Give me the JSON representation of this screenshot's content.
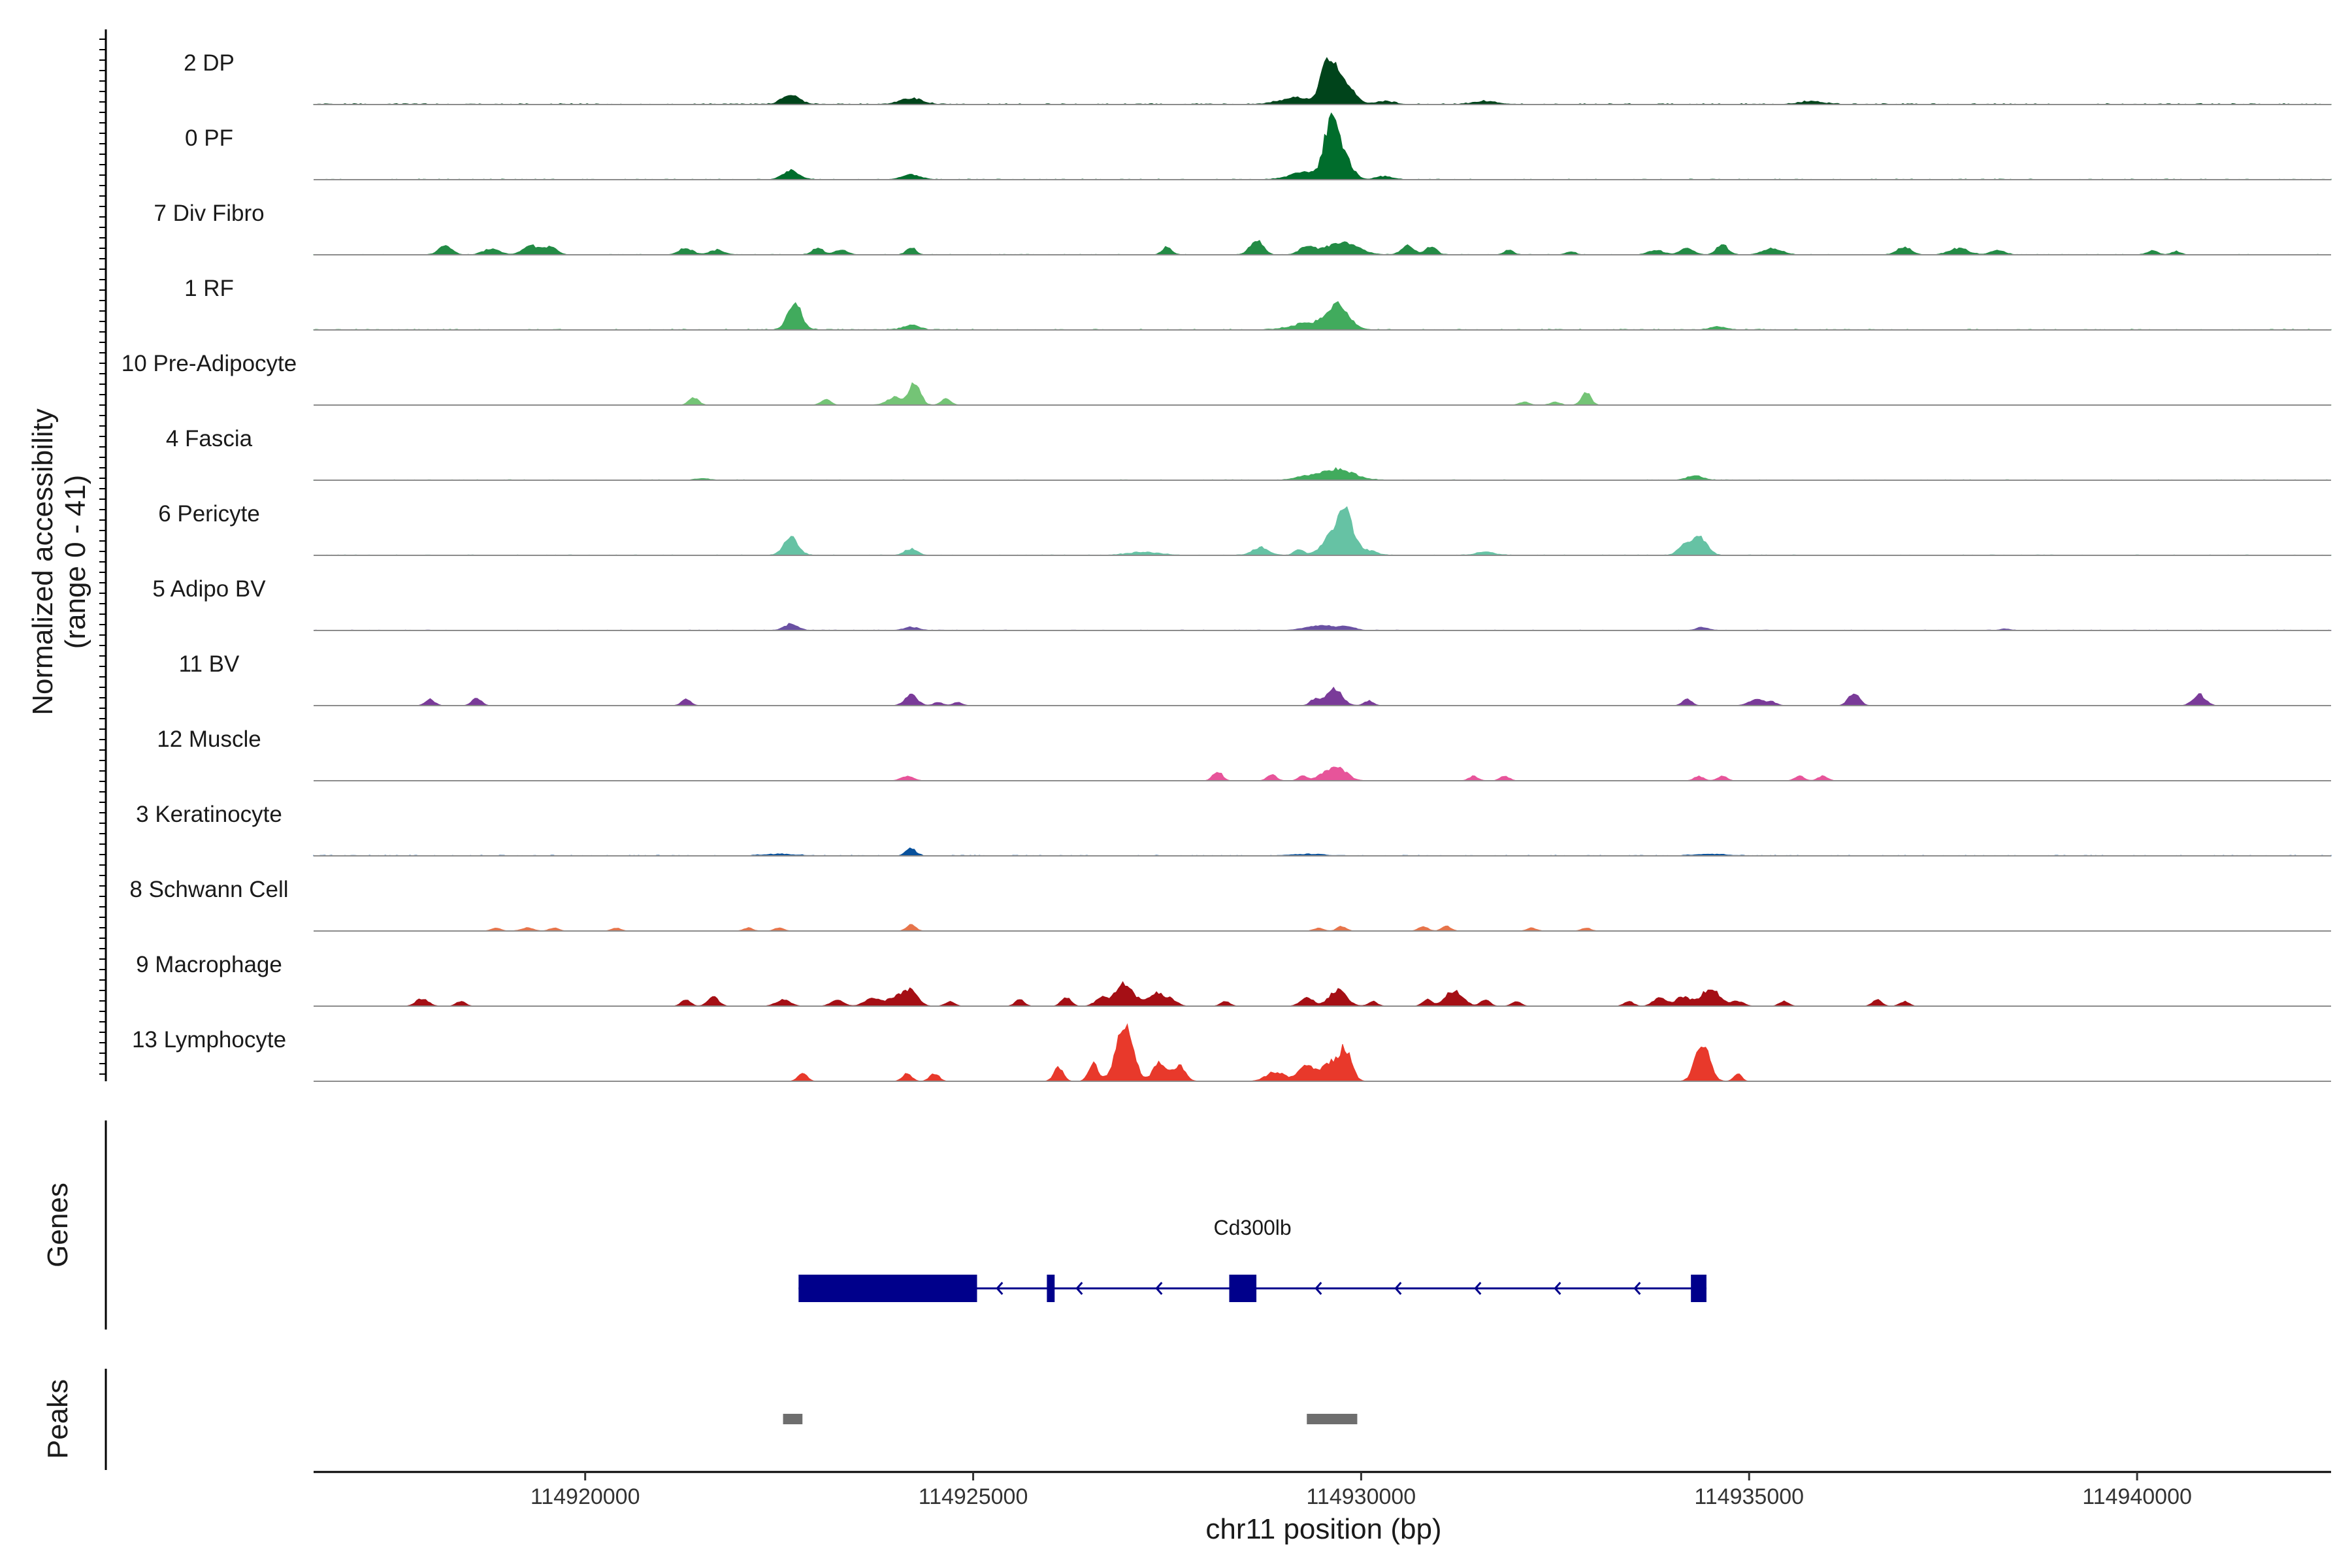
{
  "chart_data": {
    "type": "area",
    "description_kind": "genome coverage tracks",
    "ylabel": "Normalized accessibility\n(range 0 - 41)",
    "ylabel_line1": "Normalized accessibility",
    "ylabel_line2": "(range 0 - 41)",
    "ylim": [
      0,
      41
    ],
    "xlabel": "chr11 position (bp)",
    "xlim": [
      114916500,
      114942500
    ],
    "xticks": [
      114920000,
      114925000,
      114930000,
      114935000,
      114940000
    ],
    "xtick_labels": [
      "114920000",
      "114925000",
      "114930000",
      "114935000",
      "114940000"
    ],
    "tracks": [
      {
        "name": "2 DP",
        "color": "#00441b",
        "base": 0.6,
        "peaks": [
          [
            114922650,
            110,
            6
          ],
          [
            114924200,
            140,
            4
          ],
          [
            114929580,
            90,
            28
          ],
          [
            114929780,
            120,
            14
          ],
          [
            114929150,
            200,
            4
          ],
          [
            114930300,
            120,
            2
          ],
          [
            114931600,
            150,
            2
          ],
          [
            114935800,
            150,
            2
          ]
        ]
      },
      {
        "name": "0 PF",
        "color": "#006d2c",
        "base": 0.4,
        "peaks": [
          [
            114922650,
            100,
            6
          ],
          [
            114924200,
            120,
            3
          ],
          [
            114929600,
            80,
            30
          ],
          [
            114929750,
            110,
            18
          ],
          [
            114929300,
            200,
            5
          ],
          [
            114930300,
            100,
            2
          ]
        ]
      },
      {
        "name": "7 Div Fibro",
        "color": "#238b45",
        "base": 0.3,
        "peaks": [
          [
            114918200,
            80,
            6
          ],
          [
            114918800,
            100,
            4
          ],
          [
            114919300,
            100,
            6
          ],
          [
            114919550,
            80,
            5
          ],
          [
            114921300,
            90,
            4
          ],
          [
            114921700,
            90,
            3
          ],
          [
            114923000,
            70,
            4
          ],
          [
            114923300,
            80,
            3
          ],
          [
            114924200,
            60,
            5
          ],
          [
            114927500,
            60,
            5
          ],
          [
            114928650,
            80,
            10
          ],
          [
            114929300,
            90,
            5
          ],
          [
            114929750,
            200,
            8
          ],
          [
            114930600,
            80,
            6
          ],
          [
            114930900,
            70,
            5
          ],
          [
            114931900,
            60,
            3
          ],
          [
            114932700,
            60,
            2
          ],
          [
            114933800,
            90,
            3
          ],
          [
            114934200,
            90,
            4
          ],
          [
            114934650,
            70,
            7
          ],
          [
            114935300,
            120,
            4
          ],
          [
            114937000,
            90,
            5
          ],
          [
            114937700,
            120,
            4
          ],
          [
            114938200,
            90,
            3
          ],
          [
            114940200,
            60,
            3
          ],
          [
            114940500,
            60,
            2
          ]
        ]
      },
      {
        "name": "1 RF",
        "color": "#41ab5d",
        "base": 0.5,
        "peaks": [
          [
            114922700,
            90,
            16
          ],
          [
            114924200,
            100,
            3
          ],
          [
            114929700,
            140,
            16
          ],
          [
            114929300,
            200,
            4
          ],
          [
            114934600,
            100,
            2
          ]
        ]
      },
      {
        "name": "10 Pre-Adipocyte",
        "color": "#74c476",
        "base": 0.2,
        "peaks": [
          [
            114921400,
            60,
            5
          ],
          [
            114923100,
            60,
            4
          ],
          [
            114924000,
            100,
            5
          ],
          [
            114924250,
            70,
            14
          ],
          [
            114924650,
            60,
            4
          ],
          [
            114932100,
            60,
            2
          ],
          [
            114932500,
            60,
            2
          ],
          [
            114932900,
            60,
            8
          ]
        ]
      },
      {
        "name": "4 Fascia",
        "color": "#41ab5d",
        "base": 0.3,
        "peaks": [
          [
            114929700,
            200,
            7
          ],
          [
            114929300,
            150,
            2
          ],
          [
            114934300,
            100,
            3
          ],
          [
            114921500,
            80,
            1
          ]
        ]
      },
      {
        "name": "6 Pericyte",
        "color": "#66c2a4",
        "base": 0.3,
        "peaks": [
          [
            114922650,
            90,
            12
          ],
          [
            114924200,
            80,
            4
          ],
          [
            114928700,
            100,
            5
          ],
          [
            114929200,
            60,
            4
          ],
          [
            114929800,
            100,
            26
          ],
          [
            114929600,
            120,
            10
          ],
          [
            114930100,
            100,
            3
          ],
          [
            114934350,
            100,
            12
          ],
          [
            114934150,
            80,
            5
          ],
          [
            114927200,
            200,
            2
          ],
          [
            114931600,
            120,
            2
          ]
        ]
      },
      {
        "name": "5 Adipo BV",
        "color": "#6a51a3",
        "base": 0.3,
        "peaks": [
          [
            114922650,
            90,
            4
          ],
          [
            114924200,
            100,
            2
          ],
          [
            114929500,
            200,
            3
          ],
          [
            114929850,
            80,
            2
          ],
          [
            114934400,
            80,
            2
          ],
          [
            114938300,
            60,
            1
          ]
        ]
      },
      {
        "name": "11 BV",
        "color": "#7a3b99",
        "base": 0,
        "peaks": [
          [
            114918000,
            60,
            4
          ],
          [
            114918600,
            60,
            5
          ],
          [
            114921300,
            60,
            4
          ],
          [
            114924200,
            80,
            7
          ],
          [
            114924550,
            60,
            2
          ],
          [
            114924800,
            60,
            2
          ],
          [
            114929650,
            100,
            11
          ],
          [
            114929400,
            60,
            4
          ],
          [
            114930100,
            60,
            3
          ],
          [
            114934200,
            60,
            4
          ],
          [
            114935100,
            100,
            4
          ],
          [
            114935300,
            60,
            2
          ],
          [
            114936350,
            70,
            8
          ],
          [
            114940800,
            80,
            7
          ]
        ]
      },
      {
        "name": "12 Muscle",
        "color": "#e7549a",
        "base": 0,
        "peaks": [
          [
            114924150,
            80,
            3
          ],
          [
            114928150,
            60,
            6
          ],
          [
            114928850,
            60,
            4
          ],
          [
            114929250,
            60,
            3
          ],
          [
            114929700,
            120,
            8
          ],
          [
            114929500,
            80,
            3
          ],
          [
            114931450,
            60,
            3
          ],
          [
            114931850,
            60,
            3
          ],
          [
            114934350,
            60,
            3
          ],
          [
            114934650,
            60,
            3
          ],
          [
            114935650,
            60,
            3
          ],
          [
            114935950,
            60,
            3
          ]
        ]
      },
      {
        "name": "3 Keratinocyte",
        "color": "#08519c",
        "base": 0.4,
        "peaks": [
          [
            114924200,
            60,
            5
          ],
          [
            114929300,
            200,
            1
          ],
          [
            114934500,
            200,
            1
          ],
          [
            114922500,
            200,
            1
          ]
        ]
      },
      {
        "name": "8 Schwann Cell",
        "color": "#e6744b",
        "base": 0,
        "peaks": [
          [
            114918850,
            60,
            2
          ],
          [
            114919250,
            80,
            2
          ],
          [
            114919600,
            60,
            2
          ],
          [
            114920400,
            60,
            2
          ],
          [
            114922100,
            60,
            2
          ],
          [
            114922500,
            60,
            2
          ],
          [
            114924200,
            60,
            4
          ],
          [
            114929450,
            60,
            2
          ],
          [
            114929750,
            60,
            3
          ],
          [
            114930800,
            60,
            3
          ],
          [
            114931100,
            60,
            3
          ],
          [
            114932200,
            60,
            2
          ],
          [
            114932900,
            60,
            2
          ]
        ]
      },
      {
        "name": "9 Macrophage",
        "color": "#a50f15",
        "base": 0,
        "peaks": [
          [
            114917900,
            80,
            5
          ],
          [
            114918400,
            60,
            3
          ],
          [
            114921300,
            60,
            4
          ],
          [
            114921650,
            70,
            6
          ],
          [
            114922550,
            90,
            4
          ],
          [
            114923250,
            80,
            4
          ],
          [
            114923700,
            100,
            5
          ],
          [
            114924000,
            100,
            6
          ],
          [
            114924200,
            90,
            10
          ],
          [
            114924700,
            60,
            3
          ],
          [
            114925600,
            60,
            4
          ],
          [
            114926200,
            60,
            6
          ],
          [
            114926650,
            80,
            5
          ],
          [
            114926950,
            120,
            14
          ],
          [
            114927350,
            100,
            8
          ],
          [
            114927550,
            80,
            4
          ],
          [
            114928250,
            60,
            3
          ],
          [
            114929300,
            80,
            6
          ],
          [
            114929700,
            110,
            10
          ],
          [
            114930150,
            60,
            3
          ],
          [
            114930850,
            60,
            4
          ],
          [
            114931200,
            110,
            10
          ],
          [
            114931600,
            60,
            4
          ],
          [
            114932000,
            60,
            3
          ],
          [
            114933450,
            60,
            3
          ],
          [
            114933850,
            80,
            6
          ],
          [
            114934150,
            90,
            6
          ],
          [
            114934500,
            120,
            11
          ],
          [
            114934850,
            80,
            3
          ],
          [
            114935450,
            60,
            3
          ],
          [
            114936650,
            60,
            4
          ],
          [
            114937000,
            60,
            3
          ]
        ]
      },
      {
        "name": "13 Lymphocyte",
        "color": "#e8392b",
        "base": 0,
        "peaks": [
          [
            114922800,
            60,
            5
          ],
          [
            114924150,
            60,
            5
          ],
          [
            114924500,
            60,
            5
          ],
          [
            114926100,
            60,
            9
          ],
          [
            114926550,
            60,
            12
          ],
          [
            114926950,
            110,
            34
          ],
          [
            114927400,
            80,
            12
          ],
          [
            114927650,
            80,
            10
          ],
          [
            114928900,
            120,
            6
          ],
          [
            114929300,
            100,
            10
          ],
          [
            114929800,
            80,
            20
          ],
          [
            114929600,
            100,
            12
          ],
          [
            114934400,
            90,
            26
          ],
          [
            114934850,
            50,
            5
          ]
        ]
      }
    ],
    "genes_label": "Genes",
    "gene": {
      "name": "Cd300lb",
      "strand": "-",
      "start": 114922750,
      "end": 114934450,
      "color": "#00008b",
      "exons": [
        [
          114922750,
          114925050
        ],
        [
          114925950,
          114926050
        ],
        [
          114928300,
          114928650
        ],
        [
          114934250,
          114934450
        ]
      ]
    },
    "peaks_label": "Peaks",
    "peak_regions": [
      [
        114922550,
        114922800
      ],
      [
        114929300,
        114929950
      ]
    ],
    "peak_color": "#6e6e6e"
  }
}
